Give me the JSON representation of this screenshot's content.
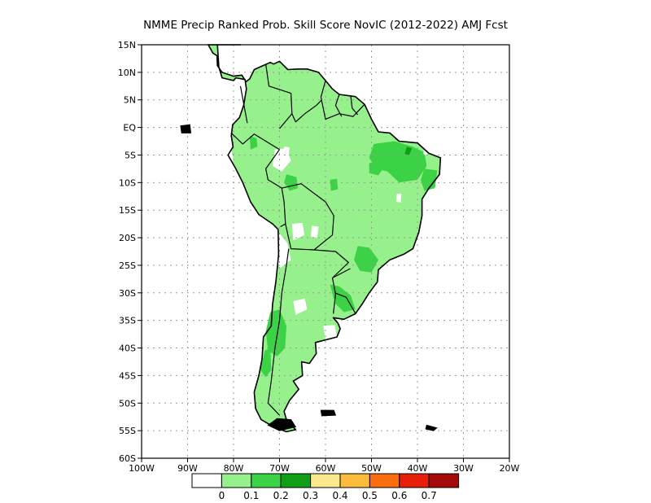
{
  "title": "NMME Precip Ranked Prob. Skill Score NovIC (2012-2022) AMJ Fcst",
  "map": {
    "lon_range": [
      -100,
      -20
    ],
    "lat_range": [
      -60,
      15
    ],
    "lon_ticks": [
      {
        "value": -100,
        "label": "100W"
      },
      {
        "value": -90,
        "label": "90W"
      },
      {
        "value": -80,
        "label": "80W"
      },
      {
        "value": -70,
        "label": "70W"
      },
      {
        "value": -60,
        "label": "60W"
      },
      {
        "value": -50,
        "label": "50W"
      },
      {
        "value": -40,
        "label": "40W"
      },
      {
        "value": -30,
        "label": "30W"
      },
      {
        "value": -20,
        "label": "20W"
      }
    ],
    "lat_ticks": [
      {
        "value": 15,
        "label": "15N"
      },
      {
        "value": 10,
        "label": "10N"
      },
      {
        "value": 5,
        "label": "5N"
      },
      {
        "value": 0,
        "label": "EQ"
      },
      {
        "value": -5,
        "label": "5S"
      },
      {
        "value": -10,
        "label": "10S"
      },
      {
        "value": -15,
        "label": "15S"
      },
      {
        "value": -20,
        "label": "20S"
      },
      {
        "value": -25,
        "label": "25S"
      },
      {
        "value": -30,
        "label": "30S"
      },
      {
        "value": -35,
        "label": "35S"
      },
      {
        "value": -40,
        "label": "40S"
      },
      {
        "value": -45,
        "label": "45S"
      },
      {
        "value": -50,
        "label": "50S"
      },
      {
        "value": -55,
        "label": "55S"
      },
      {
        "value": -60,
        "label": "60S"
      }
    ],
    "grid": true,
    "skill_colors": {
      "band_0_01": "#96f08c",
      "band_01_02": "#3cd246",
      "band_02_03": "#0f9e16"
    }
  },
  "colorbar": {
    "colors": [
      "#ffffff",
      "#96f08c",
      "#3cd246",
      "#0f9e16",
      "#fae98c",
      "#fbbb3c",
      "#fa6e10",
      "#e61e0a",
      "#a50a0a"
    ],
    "labels": [
      "0",
      "0.1",
      "0.2",
      "0.3",
      "0.4",
      "0.5",
      "0.6",
      "0.7"
    ]
  }
}
